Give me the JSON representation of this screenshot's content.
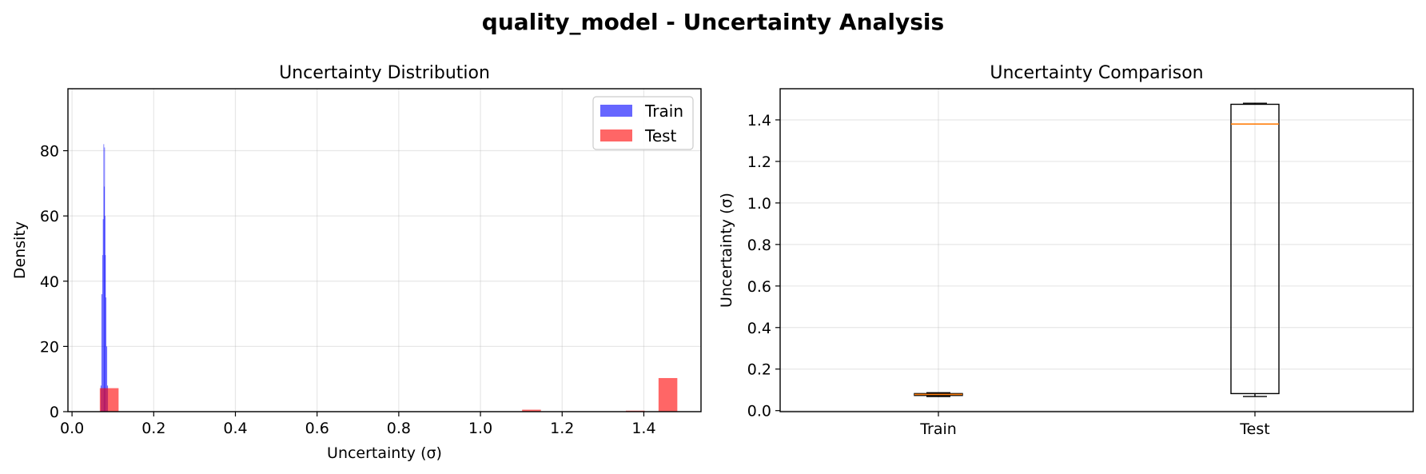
{
  "suptitle": "quality_model - Uncertainty Analysis",
  "chart_data": [
    {
      "type": "histogram",
      "title": "Uncertainty Distribution",
      "xlabel": "Uncertainty (σ)",
      "ylabel": "Density",
      "xlim": [
        -0.01,
        1.54
      ],
      "ylim": [
        0,
        99
      ],
      "xticks": [
        0.0,
        0.2,
        0.4,
        0.6,
        0.8,
        1.0,
        1.2,
        1.4
      ],
      "xtick_labels": [
        "0.0",
        "0.2",
        "0.4",
        "0.6",
        "0.8",
        "1.0",
        "1.2",
        "1.4"
      ],
      "yticks": [
        0,
        20,
        40,
        60,
        80
      ],
      "ytick_labels": [
        "0",
        "20",
        "40",
        "60",
        "80"
      ],
      "grid": true,
      "legend_position": "upper right",
      "series": [
        {
          "name": "Train",
          "color": "#0000ff",
          "alpha": 0.6,
          "bins": [
            {
              "x0": 0.07,
              "x1": 0.072,
              "y": 8
            },
            {
              "x0": 0.072,
              "x1": 0.074,
              "y": 36
            },
            {
              "x0": 0.074,
              "x1": 0.0755,
              "y": 48
            },
            {
              "x0": 0.0755,
              "x1": 0.077,
              "y": 59
            },
            {
              "x0": 0.077,
              "x1": 0.078,
              "y": 82
            },
            {
              "x0": 0.078,
              "x1": 0.079,
              "y": 69
            },
            {
              "x0": 0.079,
              "x1": 0.08,
              "y": 81
            },
            {
              "x0": 0.08,
              "x1": 0.081,
              "y": 60
            },
            {
              "x0": 0.081,
              "x1": 0.0825,
              "y": 48
            },
            {
              "x0": 0.0825,
              "x1": 0.084,
              "y": 35
            },
            {
              "x0": 0.084,
              "x1": 0.086,
              "y": 20
            },
            {
              "x0": 0.086,
              "x1": 0.088,
              "y": 8
            }
          ]
        },
        {
          "name": "Test",
          "color": "#ff0000",
          "alpha": 0.6,
          "bins": [
            {
              "x0": 0.068,
              "x1": 0.114,
              "y": 7.2
            },
            {
              "x0": 1.102,
              "x1": 1.148,
              "y": 0.6
            },
            {
              "x0": 1.356,
              "x1": 1.402,
              "y": 0.3
            },
            {
              "x0": 1.436,
              "x1": 1.482,
              "y": 10.3
            }
          ]
        }
      ]
    },
    {
      "type": "box",
      "title": "Uncertainty Comparison",
      "xlabel": "",
      "ylabel": "Uncertainty (σ)",
      "ylim": [
        -0.005,
        1.55
      ],
      "yticks": [
        0.0,
        0.2,
        0.4,
        0.6,
        0.8,
        1.0,
        1.2,
        1.4
      ],
      "ytick_labels": [
        "0.0",
        "0.2",
        "0.4",
        "0.6",
        "0.8",
        "1.0",
        "1.2",
        "1.4"
      ],
      "grid": true,
      "categories": [
        "Train",
        "Test"
      ],
      "boxes": [
        {
          "name": "Train",
          "whisker_low": 0.068,
          "q1": 0.073,
          "median": 0.078,
          "q3": 0.082,
          "whisker_high": 0.086
        },
        {
          "name": "Test",
          "whisker_low": 0.068,
          "q1": 0.082,
          "median": 1.38,
          "q3": 1.475,
          "whisker_high": 1.48
        }
      ],
      "box_edge_color": "#000000",
      "median_color": "#ff7f0e"
    }
  ]
}
